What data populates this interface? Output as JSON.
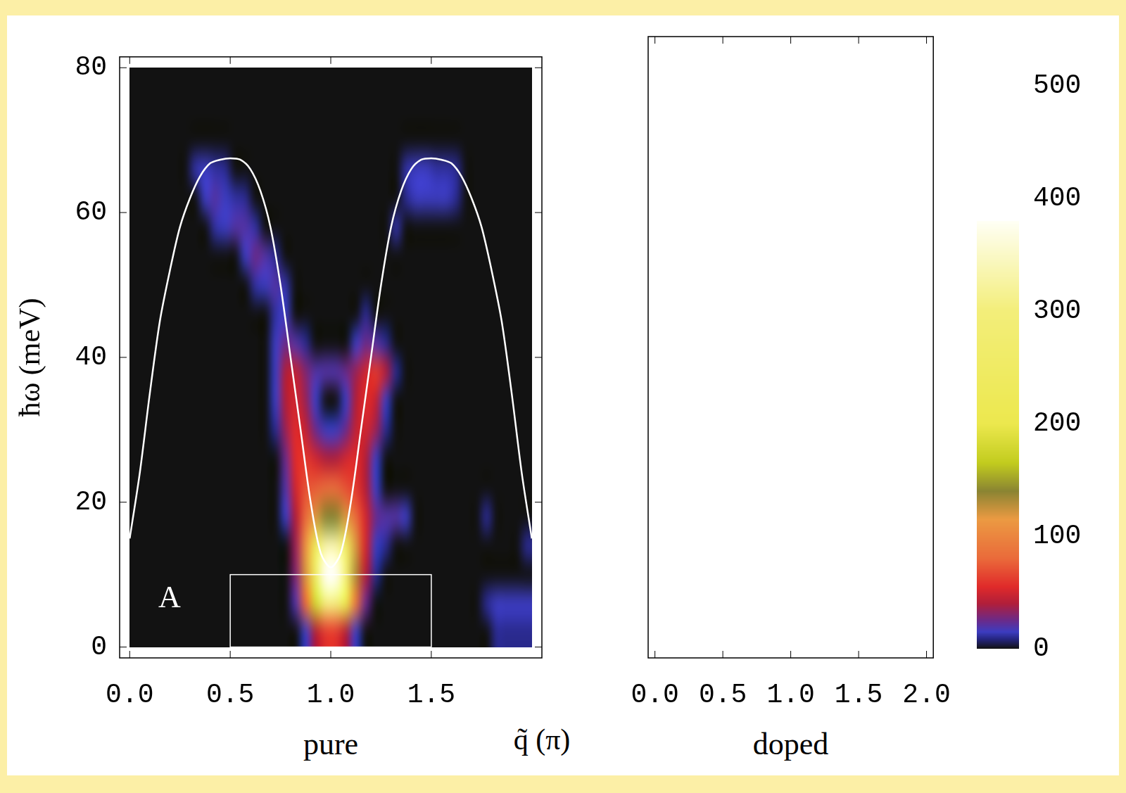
{
  "chart_data": [
    {
      "type": "heatmap",
      "subtitle": "pure",
      "x_label": "q̃ (π)",
      "y_label": "ħω (meV)",
      "panel_label": "A",
      "xlim": [
        -0.05,
        2.05
      ],
      "xticks": [
        {
          "value": 0,
          "label": "0.0"
        },
        0.5,
        {
          "value": 1,
          "label": "1.0"
        },
        1.5
      ],
      "ylim": [
        -1.5,
        81.5
      ],
      "yticks": [
        0,
        20,
        40,
        60,
        80
      ],
      "grid": false,
      "heatmap": {
        "xlim": [
          0,
          2
        ],
        "ylim": [
          0,
          80
        ],
        "cell_size": [
          0.05,
          4
        ],
        "cells": [
          [
            0.875,
            2,
            15
          ],
          [
            0.925,
            2,
            40
          ],
          [
            0.975,
            2,
            60
          ],
          [
            1.025,
            2,
            60
          ],
          [
            1.075,
            2,
            40
          ],
          [
            1.125,
            2,
            15
          ],
          [
            1.825,
            2,
            10
          ],
          [
            1.875,
            2,
            10
          ],
          [
            1.925,
            2,
            10
          ],
          [
            1.975,
            2,
            10
          ],
          [
            0.825,
            6,
            20
          ],
          [
            0.875,
            6,
            80
          ],
          [
            0.925,
            6,
            180
          ],
          [
            0.975,
            6,
            300
          ],
          [
            1.025,
            6,
            300
          ],
          [
            1.075,
            6,
            200
          ],
          [
            1.125,
            6,
            90
          ],
          [
            1.175,
            6,
            25
          ],
          [
            1.775,
            6,
            10
          ],
          [
            1.825,
            6,
            15
          ],
          [
            1.875,
            6,
            15
          ],
          [
            1.925,
            6,
            15
          ],
          [
            1.975,
            6,
            15
          ],
          [
            0.825,
            10,
            30
          ],
          [
            0.875,
            10,
            120
          ],
          [
            0.925,
            10,
            260
          ],
          [
            0.975,
            10,
            420
          ],
          [
            1.025,
            10,
            420
          ],
          [
            1.075,
            10,
            300
          ],
          [
            1.125,
            10,
            130
          ],
          [
            1.175,
            10,
            40
          ],
          [
            1.225,
            10,
            10
          ],
          [
            0.825,
            14,
            35
          ],
          [
            0.875,
            14,
            110
          ],
          [
            0.925,
            14,
            230
          ],
          [
            0.975,
            14,
            330
          ],
          [
            1.025,
            14,
            330
          ],
          [
            1.075,
            14,
            250
          ],
          [
            1.125,
            14,
            120
          ],
          [
            1.175,
            14,
            50
          ],
          [
            1.225,
            14,
            15
          ],
          [
            1.275,
            14,
            10
          ],
          [
            1.975,
            14,
            10
          ],
          [
            0.775,
            18,
            15
          ],
          [
            0.825,
            18,
            40
          ],
          [
            0.875,
            18,
            80
          ],
          [
            0.925,
            18,
            120
          ],
          [
            0.975,
            18,
            140
          ],
          [
            1.025,
            18,
            140
          ],
          [
            1.075,
            18,
            120
          ],
          [
            1.125,
            18,
            80
          ],
          [
            1.175,
            18,
            50
          ],
          [
            1.225,
            18,
            25
          ],
          [
            1.275,
            18,
            20
          ],
          [
            1.325,
            18,
            20
          ],
          [
            1.375,
            18,
            15
          ],
          [
            1.775,
            18,
            10
          ],
          [
            0.775,
            22,
            20
          ],
          [
            0.825,
            22,
            50
          ],
          [
            0.875,
            22,
            70
          ],
          [
            0.925,
            22,
            75
          ],
          [
            0.975,
            22,
            80
          ],
          [
            1.025,
            22,
            80
          ],
          [
            1.075,
            22,
            70
          ],
          [
            1.125,
            22,
            60
          ],
          [
            1.175,
            22,
            40
          ],
          [
            1.225,
            22,
            15
          ],
          [
            0.775,
            26,
            25
          ],
          [
            0.825,
            26,
            55
          ],
          [
            0.875,
            26,
            60
          ],
          [
            0.925,
            26,
            50
          ],
          [
            0.975,
            26,
            40
          ],
          [
            1.025,
            26,
            40
          ],
          [
            1.075,
            26,
            50
          ],
          [
            1.125,
            26,
            55
          ],
          [
            1.175,
            26,
            40
          ],
          [
            1.225,
            26,
            15
          ],
          [
            0.725,
            30,
            10
          ],
          [
            0.775,
            30,
            35
          ],
          [
            0.825,
            30,
            55
          ],
          [
            0.875,
            30,
            45
          ],
          [
            0.925,
            30,
            25
          ],
          [
            0.975,
            30,
            15
          ],
          [
            1.025,
            30,
            15
          ],
          [
            1.075,
            30,
            25
          ],
          [
            1.125,
            30,
            45
          ],
          [
            1.175,
            30,
            50
          ],
          [
            1.225,
            30,
            35
          ],
          [
            1.275,
            30,
            10
          ],
          [
            0.725,
            34,
            15
          ],
          [
            0.775,
            34,
            40
          ],
          [
            0.825,
            34,
            50
          ],
          [
            0.875,
            34,
            35
          ],
          [
            0.925,
            34,
            15
          ],
          [
            1.075,
            34,
            15
          ],
          [
            1.125,
            34,
            40
          ],
          [
            1.175,
            34,
            55
          ],
          [
            1.225,
            34,
            45
          ],
          [
            1.275,
            34,
            15
          ],
          [
            0.725,
            38,
            15
          ],
          [
            0.775,
            38,
            40
          ],
          [
            0.825,
            38,
            45
          ],
          [
            0.875,
            38,
            30
          ],
          [
            0.925,
            38,
            20
          ],
          [
            0.975,
            38,
            20
          ],
          [
            1.025,
            38,
            20
          ],
          [
            1.075,
            38,
            25
          ],
          [
            1.125,
            38,
            35
          ],
          [
            1.175,
            38,
            50
          ],
          [
            1.225,
            38,
            60
          ],
          [
            1.275,
            38,
            40
          ],
          [
            1.325,
            38,
            10
          ],
          [
            0.725,
            42,
            15
          ],
          [
            0.775,
            42,
            25
          ],
          [
            0.825,
            42,
            20
          ],
          [
            0.875,
            42,
            10
          ],
          [
            1.125,
            42,
            15
          ],
          [
            1.175,
            42,
            25
          ],
          [
            1.225,
            42,
            20
          ],
          [
            1.275,
            42,
            10
          ],
          [
            0.725,
            46,
            12
          ],
          [
            0.775,
            46,
            15
          ],
          [
            1.175,
            46,
            10
          ],
          [
            0.625,
            50,
            12
          ],
          [
            0.675,
            50,
            15
          ],
          [
            0.725,
            50,
            20
          ],
          [
            0.775,
            50,
            12
          ],
          [
            0.575,
            54,
            15
          ],
          [
            0.625,
            54,
            25
          ],
          [
            0.675,
            54,
            20
          ],
          [
            0.725,
            54,
            10
          ],
          [
            0.425,
            58,
            12
          ],
          [
            0.475,
            58,
            15
          ],
          [
            0.525,
            58,
            20
          ],
          [
            0.575,
            58,
            20
          ],
          [
            0.625,
            58,
            12
          ],
          [
            1.325,
            58,
            12
          ],
          [
            0.375,
            62,
            15
          ],
          [
            0.425,
            62,
            20
          ],
          [
            0.475,
            62,
            15
          ],
          [
            0.525,
            62,
            12
          ],
          [
            0.575,
            62,
            10
          ],
          [
            1.375,
            62,
            10
          ],
          [
            1.425,
            62,
            15
          ],
          [
            1.475,
            62,
            15
          ],
          [
            1.525,
            62,
            15
          ],
          [
            1.575,
            62,
            15
          ],
          [
            1.625,
            62,
            10
          ],
          [
            0.325,
            66,
            12
          ],
          [
            0.375,
            66,
            15
          ],
          [
            0.425,
            66,
            12
          ],
          [
            0.475,
            66,
            10
          ],
          [
            1.375,
            66,
            12
          ],
          [
            1.425,
            66,
            15
          ],
          [
            1.475,
            66,
            15
          ],
          [
            1.525,
            66,
            12
          ],
          [
            1.575,
            66,
            12
          ],
          [
            1.625,
            66,
            10
          ]
        ]
      },
      "colorbar": {
        "lim": [
          0,
          500
        ],
        "ticks": [
          0,
          100,
          200,
          300,
          400,
          500
        ],
        "colorscale": [
          [
            0,
            "#121212"
          ],
          [
            8,
            "#23237a"
          ],
          [
            15,
            "#3c3cc0"
          ],
          [
            25,
            "#6a2a8a"
          ],
          [
            40,
            "#b01e3a"
          ],
          [
            55,
            "#e02a2a"
          ],
          [
            80,
            "#ea6a3a"
          ],
          [
            115,
            "#eb9a42"
          ],
          [
            140,
            "#8a8432"
          ],
          [
            165,
            "#c2cc1e"
          ],
          [
            200,
            "#ece84e"
          ],
          [
            300,
            "#f3ee7a"
          ],
          [
            380,
            "#fffff5"
          ]
        ]
      },
      "series": [
        {
          "type": "line",
          "color": "#ffffff",
          "line_style": "solid",
          "x": [
            0,
            0.05,
            0.1,
            0.15,
            0.2,
            0.25,
            0.3,
            0.35,
            0.4,
            0.45,
            0.5,
            0.55,
            0.6,
            0.65,
            0.7,
            0.75,
            0.8,
            0.85,
            0.9,
            0.95,
            1,
            1.05,
            1.1,
            1.15,
            1.2,
            1.25,
            1.3,
            1.35,
            1.4,
            1.45,
            1.5,
            1.55,
            1.6,
            1.65,
            1.7,
            1.75,
            1.8,
            1.85,
            1.9,
            1.95,
            2
          ],
          "values": [
            15,
            24,
            35,
            45,
            52,
            58,
            62,
            65,
            66.8,
            67.3,
            67.5,
            67.3,
            66,
            63,
            58,
            50,
            40,
            30,
            20,
            13,
            11,
            13,
            20,
            30,
            40,
            50,
            58,
            63,
            66,
            67.3,
            67.5,
            67.3,
            66.8,
            65,
            62,
            58,
            52,
            45,
            35,
            24,
            15
          ]
        }
      ],
      "annotations": [
        {
          "type": "rectangle",
          "x": [
            0.5,
            1.5
          ],
          "y": [
            0,
            10
          ],
          "color": "#ffffff"
        }
      ]
    },
    {
      "type": "heatmap",
      "subtitle": "doped",
      "xlim": [
        -0.05,
        2.05
      ],
      "xticks": [
        {
          "value": 0,
          "label": "0.0"
        },
        0.5,
        {
          "value": 1,
          "label": "1.0"
        },
        1.5,
        {
          "value": 2,
          "label": "2.0"
        }
      ],
      "ylim": [
        -1.5,
        81.5
      ],
      "tick_labels": "x",
      "grid": false
    }
  ]
}
